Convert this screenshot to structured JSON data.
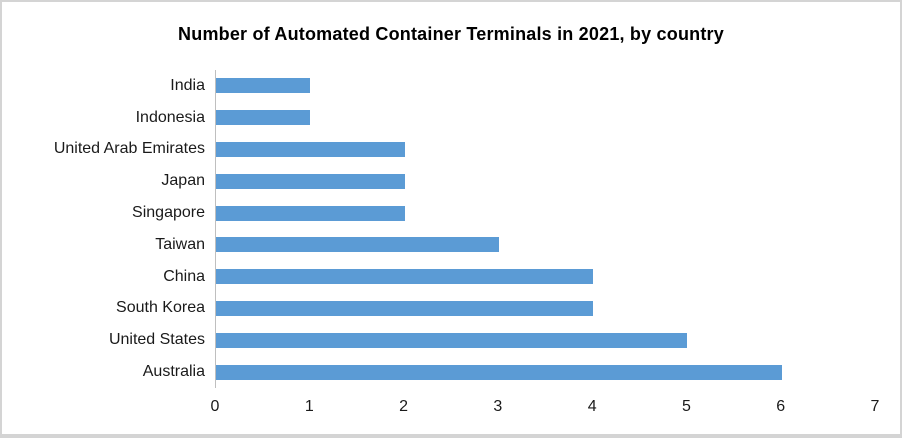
{
  "chart_data": {
    "type": "bar",
    "orientation": "horizontal",
    "title": "Number of Automated Container Terminals in 2021, by country",
    "categories": [
      "India",
      "Indonesia",
      "United Arab Emirates",
      "Japan",
      "Singapore",
      "Taiwan",
      "China",
      "South Korea",
      "United States",
      "Australia"
    ],
    "values": [
      1,
      1,
      2,
      2,
      2,
      3,
      4,
      4,
      5,
      6
    ],
    "xlabel": "",
    "ylabel": "",
    "xlim": [
      0,
      7
    ],
    "xticks": [
      0,
      1,
      2,
      3,
      4,
      5,
      6,
      7
    ],
    "grid": false,
    "legend": false,
    "colors": {
      "bar": "#5B9BD5",
      "axis_line": "#BFBFBF",
      "text": "#1A1A1A",
      "title_text": "#000000",
      "background": "#FFFFFF",
      "frame_border": "#D4D4D4"
    }
  }
}
